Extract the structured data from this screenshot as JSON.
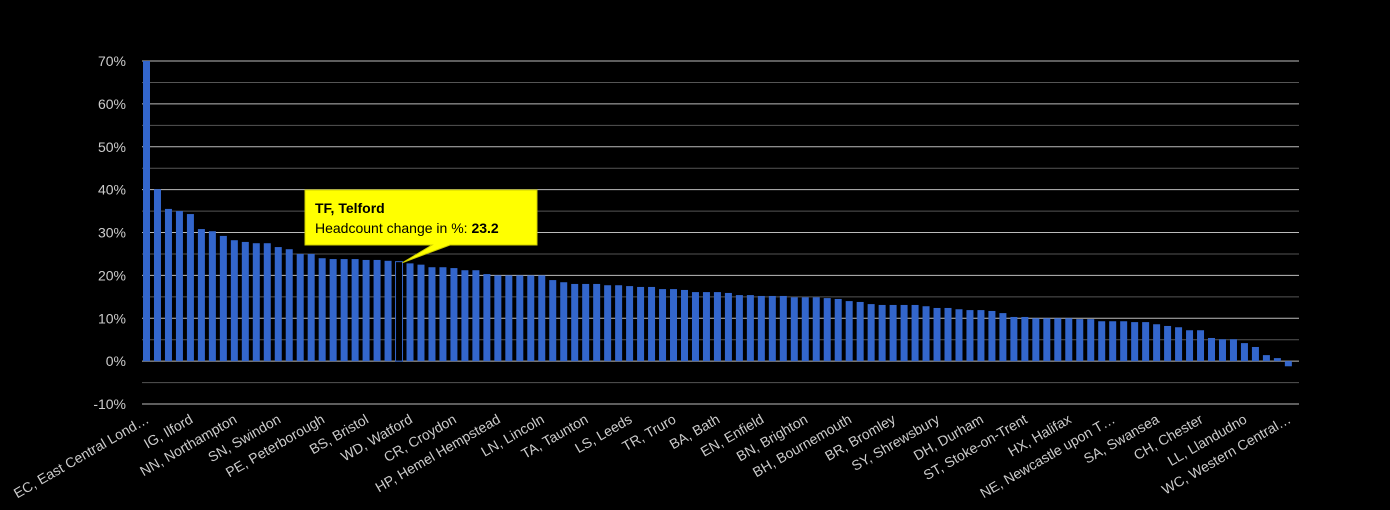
{
  "chart_data": {
    "type": "bar",
    "title": "",
    "xlabel": "",
    "ylabel": "",
    "ylim": [
      -10,
      70
    ],
    "yticks": [
      "70%",
      "60%",
      "50%",
      "40%",
      "30%",
      "20%",
      "10%",
      "0%",
      "-10%"
    ],
    "grid": true,
    "bar_color": "#3366cc",
    "tick_every": 4,
    "tick_labels": [
      "EC, East Central Lond…",
      "IG, Ilford",
      "NN, Northampton",
      "SN, Swindon",
      "PE, Peterborough",
      "BS, Bristol",
      "WD, Watford",
      "CR, Croydon",
      "HP, Hemel Hempstead",
      "LN, Lincoln",
      "TA, Taunton",
      "LS, Leeds",
      "TR, Truro",
      "BA, Bath",
      "EN, Enfield",
      "BN, Brighton",
      "BH, Bournemouth",
      "BR, Bromley",
      "SY, Shrewsbury",
      "DH, Durham",
      "ST, Stoke-on-Trent",
      "HX, Halifax",
      "NE, Newcastle upon T…",
      "SA, Swansea",
      "CH, Chester",
      "LL, Llandudno",
      "WC, Western Central…"
    ],
    "values": [
      70,
      40.1,
      35.5,
      35.0,
      34.3,
      30.8,
      30.3,
      29.2,
      28.2,
      27.8,
      27.5,
      27.5,
      26.6,
      26.1,
      25.0,
      25.0,
      24.0,
      23.8,
      23.8,
      23.8,
      23.6,
      23.6,
      23.4,
      23.2,
      22.8,
      22.5,
      21.9,
      21.9,
      21.7,
      21.2,
      21.2,
      20.3,
      20.0,
      20.0,
      20.0,
      20.0,
      20.0,
      18.9,
      18.4,
      18.0,
      18.0,
      18.0,
      17.7,
      17.7,
      17.5,
      17.3,
      17.3,
      16.8,
      16.8,
      16.6,
      16.1,
      16.1,
      16.1,
      15.9,
      15.4,
      15.4,
      15.2,
      15.2,
      15.2,
      14.9,
      14.9,
      14.9,
      14.7,
      14.5,
      14.0,
      13.8,
      13.3,
      13.1,
      13.1,
      13.1,
      13.1,
      12.8,
      12.4,
      12.4,
      12.1,
      11.9,
      11.9,
      11.7,
      11.2,
      10.3,
      10.3,
      10.0,
      10.0,
      10.0,
      10.0,
      9.8,
      9.8,
      9.3,
      9.3,
      9.3,
      9.1,
      9.1,
      8.6,
      8.2,
      7.9,
      7.2,
      7.2,
      5.4,
      5.1,
      5.1,
      4.2,
      3.3,
      1.4,
      0.7,
      -1.2
    ]
  },
  "tooltip": {
    "title": "TF, Telford",
    "label": "Headcount change in %: ",
    "value": "23.2",
    "bar_index": 23,
    "background": "#ffff00"
  }
}
